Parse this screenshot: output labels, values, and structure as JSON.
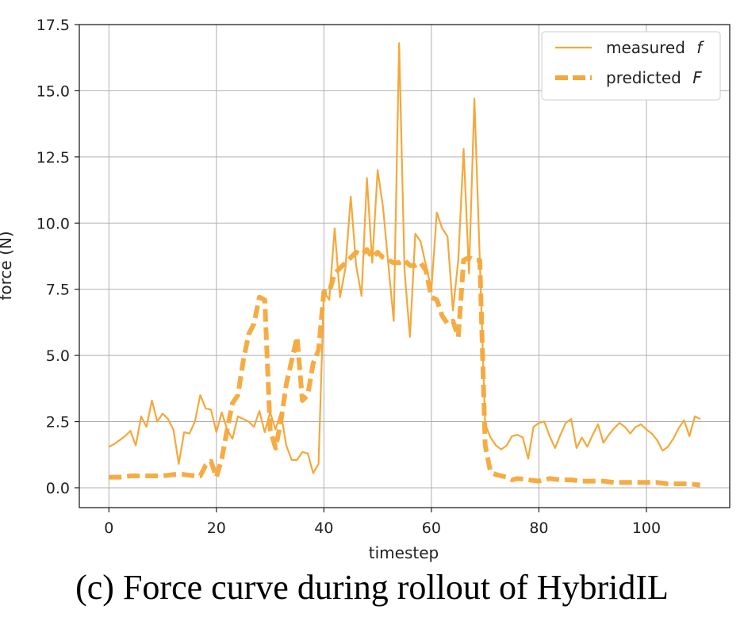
{
  "caption": "(c) Force curve during rollout of HybridIL",
  "chart_data": {
    "type": "line",
    "xlabel": "timestep",
    "ylabel": "force (N)",
    "xlim": [
      -5.5,
      115.5
    ],
    "ylim": [
      -0.75,
      17.5
    ],
    "xticks": [
      0,
      20,
      40,
      60,
      80,
      100
    ],
    "yticks": [
      0.0,
      2.5,
      5.0,
      7.5,
      10.0,
      12.5,
      15.0,
      17.5
    ],
    "ytick_labels": [
      "0.0",
      "2.5",
      "5.0",
      "7.5",
      "10.0",
      "12.5",
      "15.0",
      "17.5"
    ],
    "grid": true,
    "legend_position": "top-right",
    "series": [
      {
        "name": "measured f",
        "legend_label": "measured",
        "legend_symbol": "f",
        "style": "solid",
        "color": "#f5a83a",
        "x": [
          0,
          1,
          2,
          3,
          4,
          5,
          6,
          7,
          8,
          9,
          10,
          11,
          12,
          13,
          14,
          15,
          16,
          17,
          18,
          19,
          20,
          21,
          22,
          23,
          24,
          25,
          26,
          27,
          28,
          29,
          30,
          31,
          32,
          33,
          34,
          35,
          36,
          37,
          38,
          39,
          40,
          41,
          42,
          43,
          44,
          45,
          46,
          47,
          48,
          49,
          50,
          51,
          52,
          53,
          54,
          55,
          56,
          57,
          58,
          59,
          60,
          61,
          62,
          63,
          64,
          65,
          66,
          67,
          68,
          69,
          70,
          71,
          72,
          73,
          74,
          75,
          76,
          77,
          78,
          79,
          80,
          81,
          82,
          83,
          84,
          85,
          86,
          87,
          88,
          89,
          90,
          91,
          92,
          93,
          94,
          95,
          96,
          97,
          98,
          99,
          100,
          101,
          102,
          103,
          104,
          105,
          106,
          107,
          108,
          109,
          110
        ],
        "y": [
          1.55,
          1.65,
          1.8,
          1.95,
          2.15,
          1.6,
          2.7,
          2.3,
          3.3,
          2.5,
          2.8,
          2.6,
          2.2,
          0.9,
          2.1,
          2.05,
          2.5,
          3.5,
          3.0,
          2.95,
          2.1,
          2.85,
          2.2,
          1.85,
          2.7,
          2.6,
          2.5,
          2.3,
          2.9,
          2.1,
          2.85,
          2.2,
          2.85,
          1.6,
          1.05,
          1.05,
          1.35,
          1.3,
          0.55,
          0.9,
          7.4,
          7.1,
          9.8,
          7.2,
          8.3,
          11.0,
          8.4,
          7.25,
          11.7,
          8.5,
          12.0,
          10.6,
          8.4,
          6.3,
          16.8,
          8.2,
          5.7,
          9.6,
          9.3,
          8.4,
          7.5,
          10.4,
          9.8,
          9.5,
          6.7,
          8.6,
          12.8,
          8.1,
          14.7,
          8.6,
          2.4,
          1.9,
          1.6,
          1.45,
          1.6,
          1.95,
          2.0,
          1.9,
          1.1,
          2.3,
          2.45,
          2.5,
          1.95,
          1.5,
          2.0,
          2.45,
          2.6,
          1.5,
          1.9,
          1.55,
          2.0,
          2.4,
          1.7,
          2.0,
          2.25,
          2.45,
          2.3,
          2.05,
          2.3,
          2.4,
          2.2,
          2.05,
          1.8,
          1.4,
          1.55,
          1.85,
          2.25,
          2.55,
          1.95,
          2.7,
          2.6
        ]
      },
      {
        "name": "predicted F",
        "legend_label": "predicted",
        "legend_symbol": "F",
        "style": "dashed",
        "color": "#f5a83a",
        "x": [
          0,
          2,
          4,
          6,
          8,
          10,
          12,
          14,
          16,
          17,
          18,
          19,
          20,
          21,
          22,
          23,
          24,
          25,
          26,
          27,
          28,
          29,
          30,
          31,
          32,
          33,
          34,
          35,
          36,
          37,
          38,
          39,
          40,
          41,
          42,
          43,
          44,
          45,
          46,
          47,
          48,
          49,
          50,
          51,
          52,
          53,
          54,
          55,
          56,
          57,
          58,
          59,
          60,
          61,
          62,
          63,
          64,
          65,
          66,
          67,
          68,
          69,
          70,
          71,
          72,
          73,
          74,
          75,
          76,
          78,
          80,
          82,
          84,
          86,
          88,
          90,
          92,
          94,
          96,
          98,
          100,
          102,
          104,
          106,
          108,
          110
        ],
        "y": [
          0.4,
          0.4,
          0.45,
          0.45,
          0.45,
          0.45,
          0.5,
          0.5,
          0.45,
          0.45,
          0.85,
          1.0,
          0.4,
          1.1,
          2.2,
          3.2,
          3.5,
          4.8,
          5.8,
          6.2,
          7.2,
          7.1,
          2.2,
          1.5,
          2.5,
          3.9,
          4.8,
          5.7,
          3.3,
          3.5,
          4.7,
          5.2,
          7.4,
          7.4,
          8.1,
          8.3,
          8.5,
          8.7,
          8.9,
          8.8,
          9.0,
          8.7,
          8.9,
          8.7,
          8.6,
          8.5,
          8.5,
          8.6,
          8.4,
          8.4,
          8.5,
          8.2,
          7.2,
          7.1,
          6.5,
          6.2,
          6.3,
          5.7,
          8.6,
          8.7,
          8.6,
          8.6,
          1.6,
          0.6,
          0.5,
          0.45,
          0.4,
          0.3,
          0.35,
          0.3,
          0.25,
          0.35,
          0.3,
          0.3,
          0.25,
          0.25,
          0.25,
          0.2,
          0.2,
          0.2,
          0.2,
          0.2,
          0.15,
          0.15,
          0.15,
          0.1
        ]
      }
    ]
  }
}
